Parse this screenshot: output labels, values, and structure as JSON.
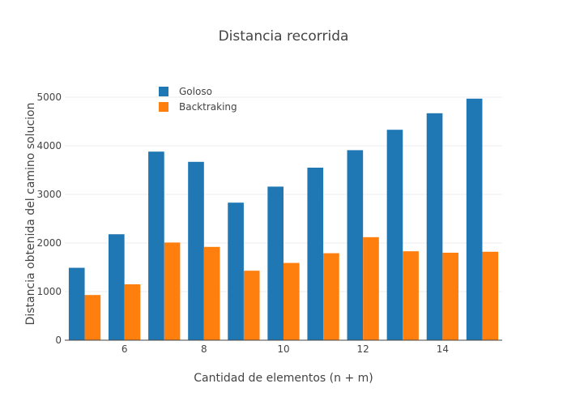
{
  "chart_data": {
    "type": "bar",
    "title": "Distancia recorrida",
    "xlabel": "Cantidad de elementos (n + m)",
    "ylabel": "Distancia obtenida del camino  solucion",
    "x": [
      5,
      6,
      7,
      8,
      9,
      10,
      11,
      12,
      13,
      14,
      15
    ],
    "x_ticks": [
      6,
      8,
      10,
      12,
      14
    ],
    "xlim": [
      4.5,
      15.5
    ],
    "ylim": [
      0,
      5200
    ],
    "y_ticks": [
      0,
      1000,
      2000,
      3000,
      4000,
      5000
    ],
    "grid": true,
    "legend_position": "top-left",
    "series": [
      {
        "name": "Goloso",
        "color": "#1f77b4",
        "values": [
          1490,
          2180,
          3880,
          3670,
          2830,
          3160,
          3550,
          3910,
          4330,
          4670,
          4970
        ]
      },
      {
        "name": "Backtraking",
        "color": "#ff7f0e",
        "values": [
          930,
          1150,
          2010,
          1920,
          1430,
          1590,
          1790,
          2120,
          1830,
          1800,
          1820
        ]
      }
    ]
  }
}
